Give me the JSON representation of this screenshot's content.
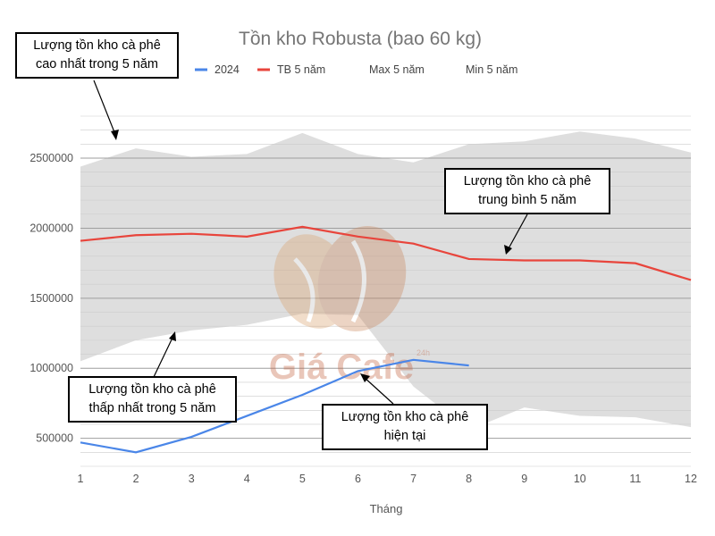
{
  "chart_data": {
    "type": "area",
    "title": "Tồn kho Robusta (bao 60 kg)",
    "xlabel": "Tháng",
    "ylabel": "",
    "x": [
      1,
      2,
      3,
      4,
      5,
      6,
      7,
      8,
      9,
      10,
      11,
      12
    ],
    "xlim": [
      1,
      12
    ],
    "ylim": [
      300000,
      2800000
    ],
    "yticks": [
      500000,
      1000000,
      1500000,
      2000000,
      2500000
    ],
    "grid": true,
    "legend_position": "top",
    "series": [
      {
        "name": "2024",
        "type": "line",
        "color": "#4a86e8",
        "values": [
          470000,
          400000,
          510000,
          660000,
          810000,
          980000,
          1060000,
          1020000,
          null,
          null,
          null,
          null
        ]
      },
      {
        "name": "TB 5 năm",
        "type": "line",
        "color": "#e8453c",
        "values": [
          1910000,
          1950000,
          1960000,
          1940000,
          2010000,
          1940000,
          1890000,
          1780000,
          1770000,
          1770000,
          1750000,
          1630000
        ]
      },
      {
        "name": "Max 5 năm",
        "type": "area-upper",
        "color": "#dedede",
        "values": [
          2440000,
          2570000,
          2510000,
          2530000,
          2680000,
          2530000,
          2470000,
          2600000,
          2620000,
          2690000,
          2640000,
          2540000
        ]
      },
      {
        "name": "Min 5 năm",
        "type": "area-lower",
        "color": "#ffffff",
        "values": [
          1050000,
          1200000,
          1270000,
          1310000,
          1390000,
          1380000,
          870000,
          560000,
          720000,
          660000,
          650000,
          580000
        ]
      }
    ]
  },
  "annotations": [
    {
      "id": "max",
      "lines": [
        "Lượng tồn kho cà phê",
        "cao nhất trong 5 năm"
      ]
    },
    {
      "id": "avg",
      "lines": [
        "Lượng tồn kho cà phê",
        "trung bình 5 năm"
      ]
    },
    {
      "id": "min",
      "lines": [
        "Lượng tồn kho cà phê",
        "thấp nhất trong 5 năm"
      ]
    },
    {
      "id": "current",
      "lines": [
        "Lượng tồn kho cà phê",
        "hiện tại"
      ]
    }
  ],
  "watermark": {
    "text": "Giá Cafe",
    "sup": "24h"
  }
}
